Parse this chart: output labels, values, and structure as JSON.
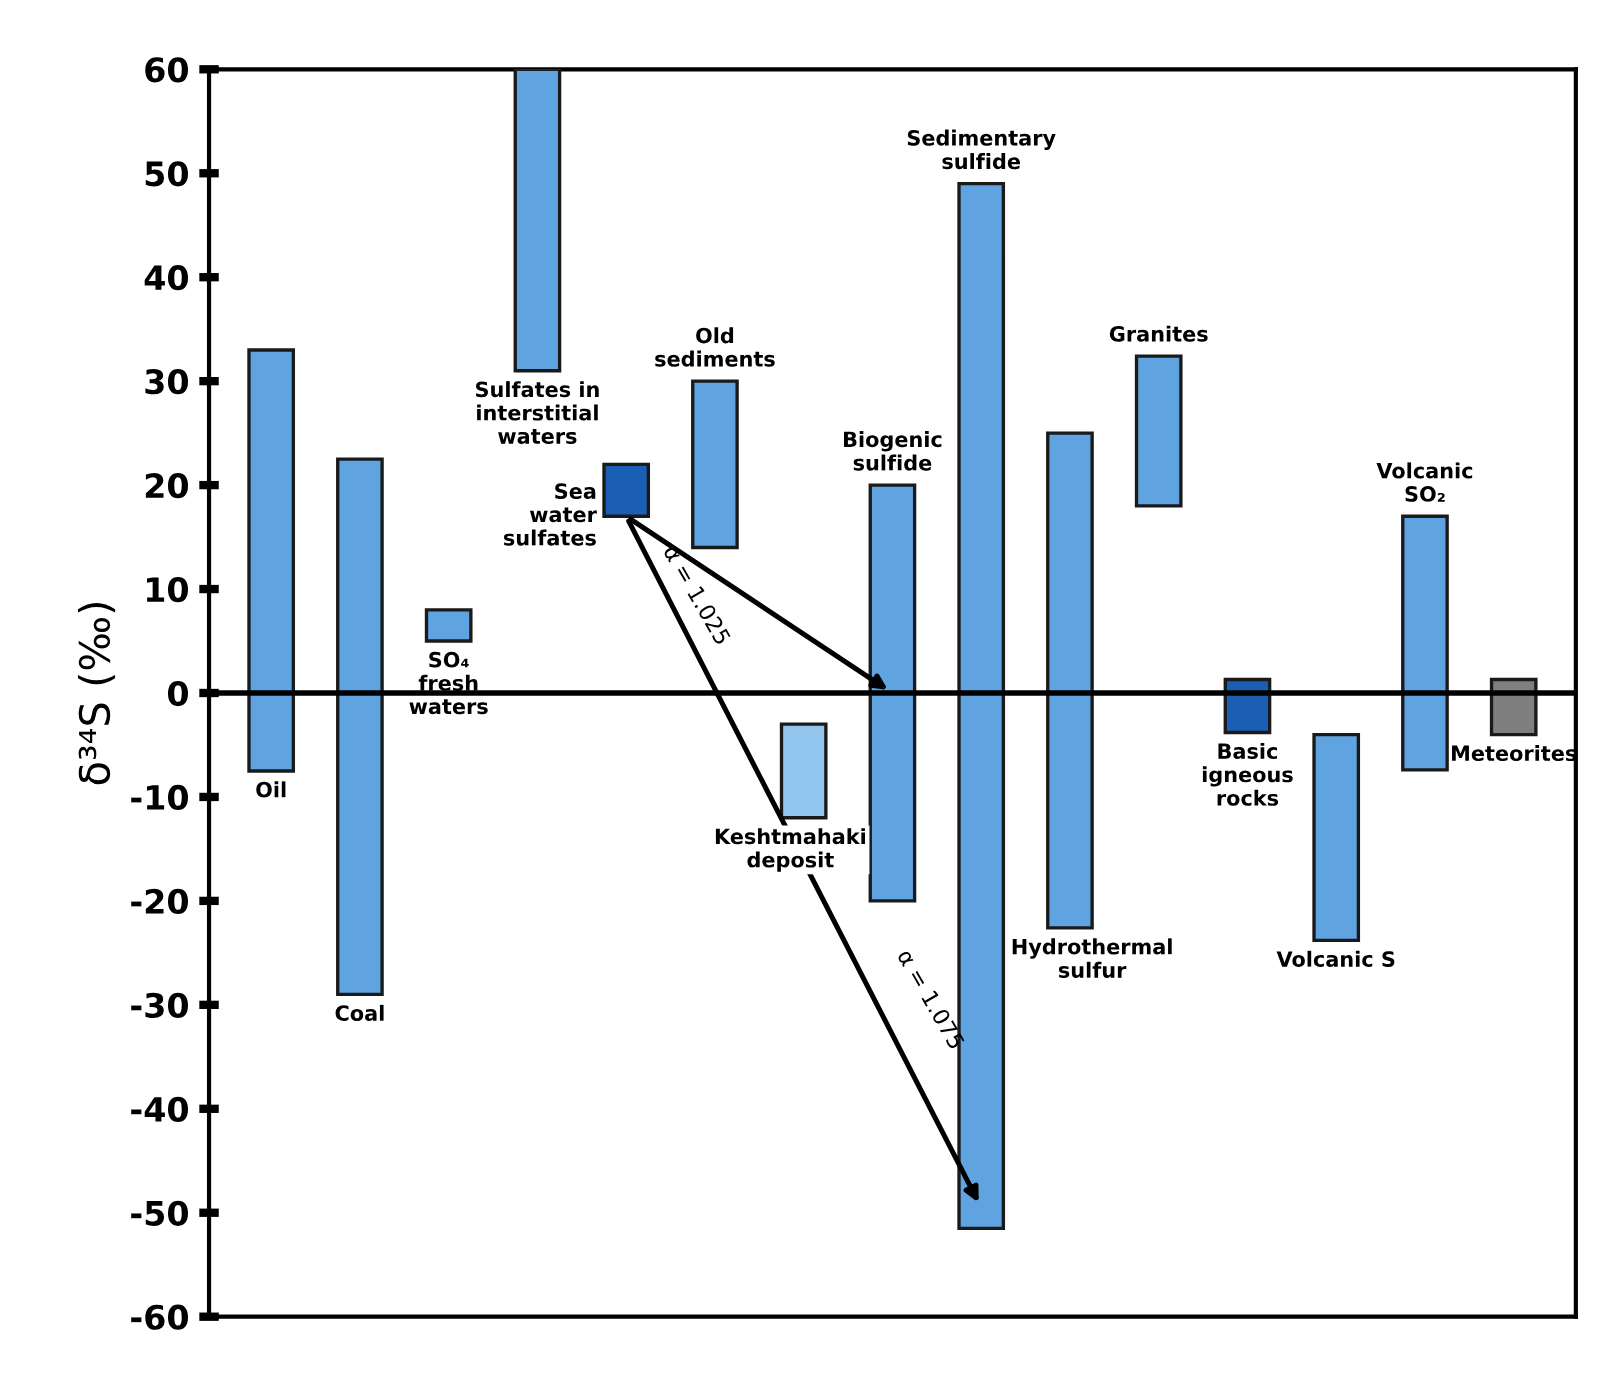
{
  "chart_data": {
    "type": "bar",
    "ylabel": "δ³⁴S (‰)",
    "categories": [
      null,
      null,
      null,
      null,
      null,
      null,
      null,
      null,
      null,
      null,
      null,
      null,
      null,
      null,
      null
    ],
    "base": [
      -7.5,
      -29,
      5,
      31,
      17,
      14,
      -12,
      -20,
      -51.5,
      -22.6,
      18,
      -3.8,
      -23.8,
      -7.4,
      -4
    ],
    "values": [
      40.5,
      51.5,
      3,
      29,
      5,
      16,
      9,
      40,
      100.5,
      47.6,
      14.4,
      5.1,
      19.8,
      24.4,
      5.3
    ],
    "colors": [
      "#5fa3e0",
      "#5fa3e0",
      "#5fa3e0",
      "#5fa3e0",
      "#1a5fb4",
      "#5fa3e0",
      "#92c5ee",
      "#5fa3e0",
      "#5fa3e0",
      "#5fa3e0",
      "#5fa3e0",
      "#1a5fb4",
      "#5fa3e0",
      "#5fa3e0",
      "#7f7f7f"
    ],
    "ylim": [
      -60,
      60
    ],
    "yticks": [
      -60,
      -50,
      -40,
      -30,
      -20,
      -10,
      0,
      10,
      20,
      30,
      40,
      50,
      60
    ],
    "ref_lines": [
      {
        "axis": "y",
        "value": 0,
        "color": "#000000"
      }
    ],
    "grid": false,
    "annotations": [
      "Oil",
      "Coal",
      "SO₄\nfresh\nwaters",
      "Sulfates in\ninterstitial\nwaters",
      "Sea\nwater\nsulfates",
      "Old\nsediments",
      "Keshtmahaki\ndeposit",
      "Biogenic\nsulfide",
      "Sedimentary\nsulfide",
      "Hydrothermal\nsulfur",
      "Granites",
      "Basic\nigneous\nrocks",
      "Volcanic S",
      "Volcanic\nSO₂",
      "Meteorites",
      "α = 1.025",
      "α = 1.075"
    ]
  }
}
